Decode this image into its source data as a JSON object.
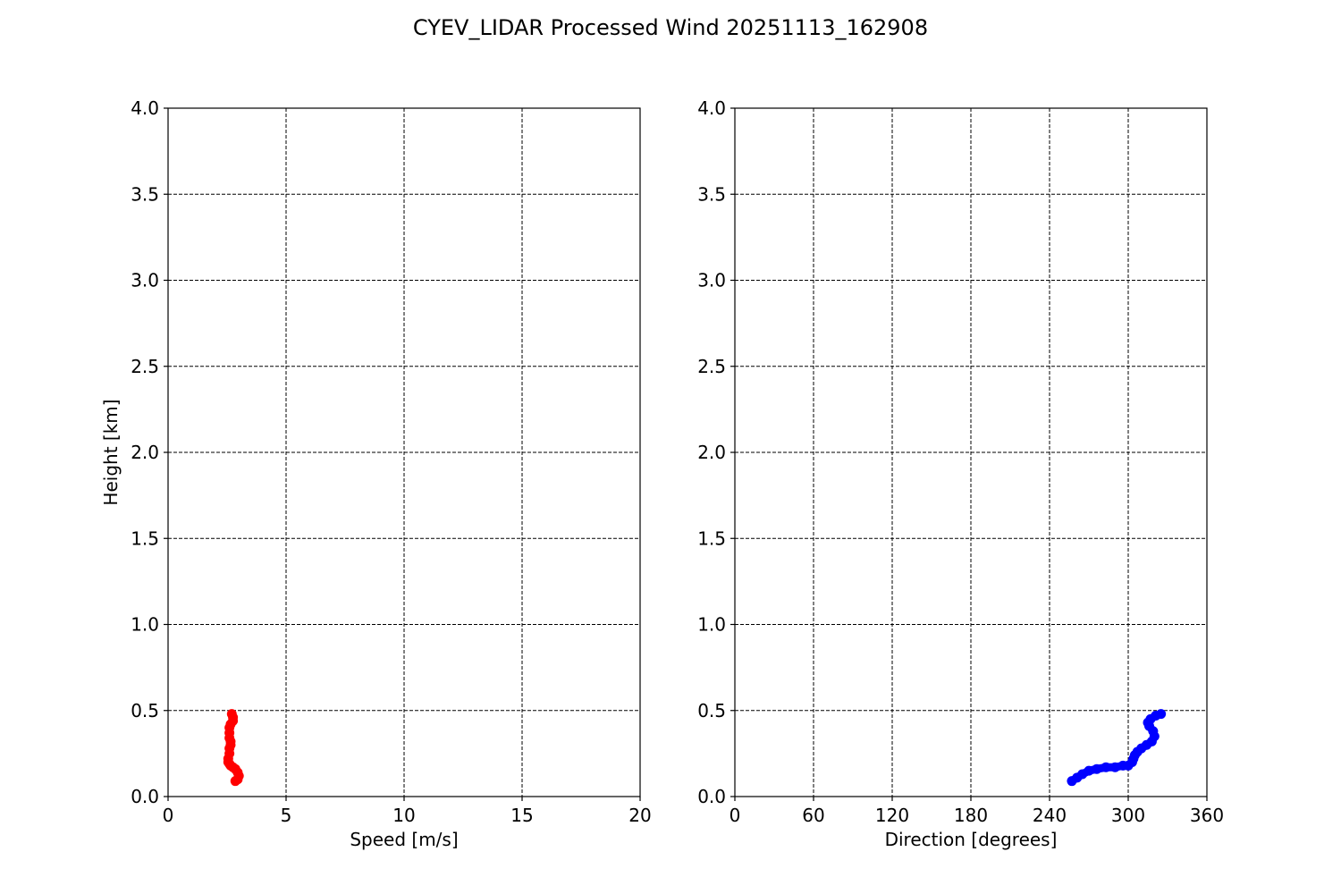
{
  "title": "CYEV_LIDAR Processed Wind 20251113_162908",
  "chart_data": [
    {
      "type": "scatter",
      "name": "speed-panel",
      "xlabel": "Speed [m/s]",
      "ylabel": "Height [km]",
      "xlim": [
        0,
        20
      ],
      "ylim": [
        0,
        4
      ],
      "xticks": [
        "0",
        "5",
        "10",
        "15",
        "20"
      ],
      "xtick_values": [
        0,
        5,
        10,
        15,
        20
      ],
      "yticks": [
        "0.0",
        "0.5",
        "1.0",
        "1.5",
        "2.0",
        "2.5",
        "3.0",
        "3.5",
        "4.0"
      ],
      "ytick_values": [
        0,
        0.5,
        1.0,
        1.5,
        2.0,
        2.5,
        3.0,
        3.5,
        4.0
      ],
      "grid": true,
      "color": "#ff0000",
      "x": [
        2.85,
        2.95,
        3.0,
        2.95,
        2.85,
        2.75,
        2.65,
        2.6,
        2.55,
        2.55,
        2.6,
        2.6,
        2.65,
        2.65,
        2.6,
        2.6,
        2.6,
        2.65,
        2.75,
        2.75,
        2.7
      ],
      "y": [
        0.09,
        0.1,
        0.12,
        0.14,
        0.16,
        0.17,
        0.18,
        0.19,
        0.2,
        0.22,
        0.25,
        0.28,
        0.3,
        0.32,
        0.34,
        0.37,
        0.4,
        0.42,
        0.44,
        0.46,
        0.48
      ]
    },
    {
      "type": "scatter",
      "name": "direction-panel",
      "xlabel": "Direction [degrees]",
      "ylabel": "",
      "xlim": [
        0,
        360
      ],
      "ylim": [
        0,
        4
      ],
      "xticks": [
        "0",
        "60",
        "120",
        "180",
        "240",
        "300",
        "360"
      ],
      "xtick_values": [
        0,
        60,
        120,
        180,
        240,
        300,
        360
      ],
      "yticks": [
        "0.0",
        "0.5",
        "1.0",
        "1.5",
        "2.0",
        "2.5",
        "3.0",
        "3.5",
        "4.0"
      ],
      "ytick_values": [
        0,
        0.5,
        1.0,
        1.5,
        2.0,
        2.5,
        3.0,
        3.5,
        4.0
      ],
      "grid": true,
      "color": "#0000ff",
      "x": [
        257,
        261,
        265,
        270,
        276,
        283,
        290,
        296,
        300,
        303,
        304,
        305,
        307,
        310,
        314,
        318,
        320,
        319,
        316,
        315,
        317,
        321,
        325
      ],
      "y": [
        0.09,
        0.11,
        0.13,
        0.15,
        0.16,
        0.17,
        0.17,
        0.18,
        0.18,
        0.2,
        0.22,
        0.24,
        0.26,
        0.28,
        0.3,
        0.32,
        0.35,
        0.38,
        0.41,
        0.43,
        0.45,
        0.47,
        0.48
      ]
    }
  ]
}
